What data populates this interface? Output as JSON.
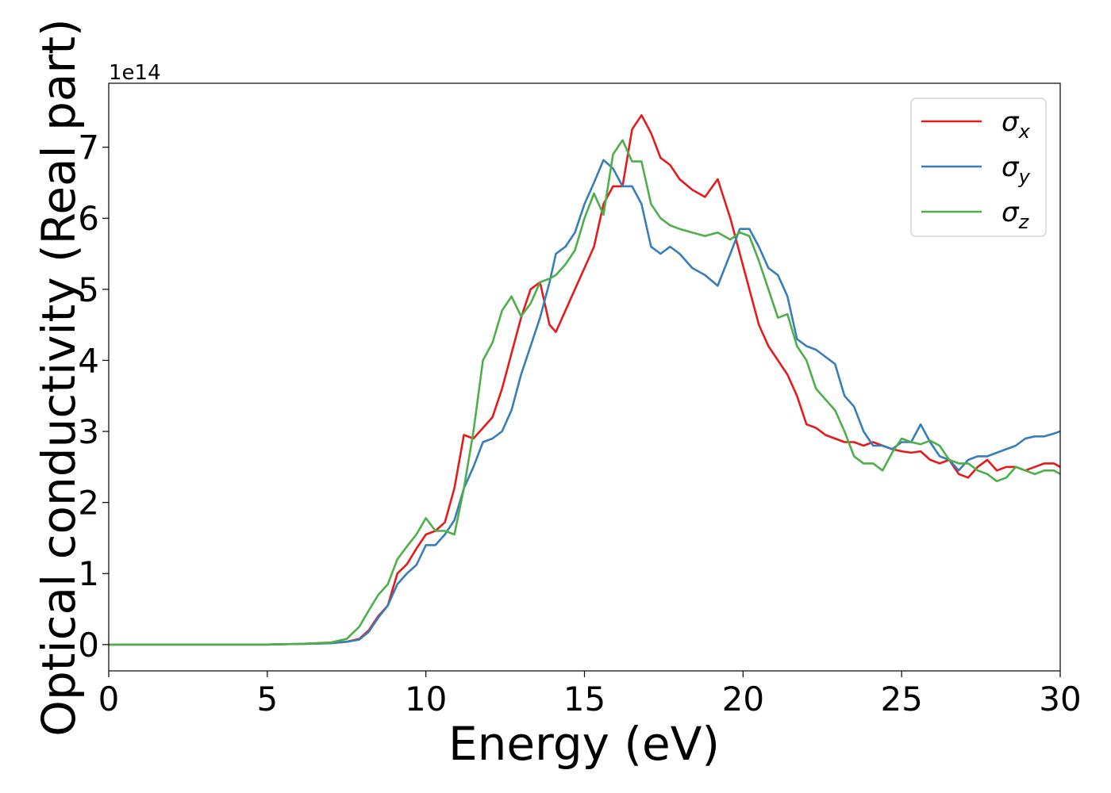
{
  "chart_data": {
    "type": "line",
    "title": "",
    "xlabel": "Energy (eV)",
    "ylabel": "Optical conductivity (Real part)",
    "y_multiplier_label": "1e14",
    "xlim": [
      0,
      30
    ],
    "ylim": [
      -0.37,
      7.9
    ],
    "xticks": [
      0,
      5,
      10,
      15,
      20,
      25,
      30
    ],
    "yticks": [
      0,
      1,
      2,
      3,
      4,
      5,
      6,
      7
    ],
    "grid": false,
    "legend_position": "top-right",
    "series": [
      {
        "name": "σ_x",
        "label_main": "σ",
        "label_sub": "x",
        "color": "#e41a1c",
        "x": [
          0,
          5,
          6,
          7,
          7.5,
          7.9,
          8.2,
          8.5,
          8.8,
          9.1,
          9.4,
          9.7,
          10.0,
          10.3,
          10.6,
          10.9,
          11.2,
          11.5,
          11.8,
          12.1,
          12.4,
          12.7,
          13.0,
          13.3,
          13.6,
          13.9,
          14.1,
          14.4,
          14.7,
          15.0,
          15.3,
          15.6,
          15.9,
          16.2,
          16.5,
          16.8,
          17.1,
          17.4,
          17.7,
          18.0,
          18.4,
          18.8,
          19.2,
          19.6,
          19.9,
          20.2,
          20.5,
          20.8,
          21.1,
          21.4,
          21.7,
          22.0,
          22.3,
          22.6,
          22.9,
          23.2,
          23.5,
          23.8,
          24.1,
          24.4,
          24.7,
          25.0,
          25.3,
          25.6,
          25.9,
          26.2,
          26.5,
          26.8,
          27.1,
          27.4,
          27.7,
          28.0,
          28.3,
          28.6,
          28.9,
          29.2,
          29.5,
          29.8,
          30.0
        ],
        "y": [
          0,
          0,
          0.01,
          0.02,
          0.04,
          0.08,
          0.2,
          0.4,
          0.55,
          1.0,
          1.13,
          1.35,
          1.55,
          1.6,
          1.72,
          2.2,
          2.95,
          2.9,
          3.05,
          3.2,
          3.6,
          4.1,
          4.6,
          5.0,
          5.1,
          4.5,
          4.4,
          4.7,
          5.0,
          5.3,
          5.6,
          6.2,
          6.45,
          6.45,
          7.25,
          7.45,
          7.2,
          6.85,
          6.75,
          6.55,
          6.4,
          6.3,
          6.55,
          6.0,
          5.5,
          5.0,
          4.5,
          4.2,
          4.0,
          3.8,
          3.5,
          3.1,
          3.05,
          2.95,
          2.9,
          2.85,
          2.85,
          2.8,
          2.85,
          2.8,
          2.75,
          2.72,
          2.7,
          2.72,
          2.6,
          2.55,
          2.6,
          2.4,
          2.35,
          2.5,
          2.6,
          2.45,
          2.5,
          2.5,
          2.45,
          2.5,
          2.55,
          2.55,
          2.5
        ]
      },
      {
        "name": "σ_y",
        "label_main": "σ",
        "label_sub": "y",
        "color": "#377eb8",
        "x": [
          0,
          5,
          6,
          7,
          7.5,
          7.9,
          8.2,
          8.5,
          8.8,
          9.1,
          9.4,
          9.7,
          10.0,
          10.3,
          10.6,
          10.9,
          11.2,
          11.5,
          11.8,
          12.1,
          12.4,
          12.7,
          13.0,
          13.3,
          13.6,
          13.9,
          14.1,
          14.4,
          14.7,
          15.0,
          15.3,
          15.6,
          15.9,
          16.2,
          16.5,
          16.8,
          17.1,
          17.4,
          17.7,
          18.0,
          18.4,
          18.8,
          19.2,
          19.6,
          19.9,
          20.2,
          20.5,
          20.8,
          21.1,
          21.4,
          21.7,
          22.0,
          22.3,
          22.6,
          22.9,
          23.2,
          23.5,
          23.8,
          24.1,
          24.4,
          24.7,
          25.0,
          25.3,
          25.6,
          25.9,
          26.2,
          26.5,
          26.8,
          27.1,
          27.4,
          27.7,
          28.0,
          28.3,
          28.6,
          28.9,
          29.2,
          29.5,
          29.8,
          30.0
        ],
        "y": [
          0,
          0,
          0.01,
          0.02,
          0.04,
          0.07,
          0.18,
          0.38,
          0.55,
          0.85,
          1.0,
          1.12,
          1.4,
          1.4,
          1.55,
          1.75,
          2.2,
          2.5,
          2.85,
          2.9,
          3.0,
          3.3,
          3.8,
          4.2,
          4.6,
          5.1,
          5.5,
          5.6,
          5.8,
          6.2,
          6.5,
          6.82,
          6.7,
          6.45,
          6.45,
          6.2,
          5.6,
          5.5,
          5.6,
          5.5,
          5.3,
          5.2,
          5.05,
          5.5,
          5.85,
          5.85,
          5.6,
          5.3,
          5.2,
          4.9,
          4.3,
          4.2,
          4.15,
          4.05,
          3.95,
          3.5,
          3.35,
          3.0,
          2.8,
          2.8,
          2.75,
          2.85,
          2.85,
          3.1,
          2.85,
          2.65,
          2.6,
          2.45,
          2.6,
          2.65,
          2.65,
          2.7,
          2.75,
          2.8,
          2.9,
          2.93,
          2.93,
          2.97,
          3.0
        ]
      },
      {
        "name": "σ_z",
        "label_main": "σ",
        "label_sub": "z",
        "color": "#4daf4a",
        "x": [
          0,
          5,
          6,
          7,
          7.5,
          7.9,
          8.2,
          8.5,
          8.8,
          9.1,
          9.4,
          9.7,
          10.0,
          10.3,
          10.6,
          10.9,
          11.2,
          11.5,
          11.8,
          12.1,
          12.4,
          12.7,
          13.0,
          13.3,
          13.6,
          13.9,
          14.1,
          14.4,
          14.7,
          15.0,
          15.3,
          15.6,
          15.9,
          16.2,
          16.5,
          16.8,
          17.1,
          17.4,
          17.7,
          18.0,
          18.4,
          18.8,
          19.2,
          19.6,
          19.9,
          20.2,
          20.5,
          20.8,
          21.1,
          21.4,
          21.7,
          22.0,
          22.3,
          22.6,
          22.9,
          23.2,
          23.5,
          23.8,
          24.1,
          24.4,
          24.7,
          25.0,
          25.3,
          25.6,
          25.9,
          26.2,
          26.5,
          26.8,
          27.1,
          27.4,
          27.7,
          28.0,
          28.3,
          28.6,
          28.9,
          29.2,
          29.5,
          29.8,
          30.0
        ],
        "y": [
          0,
          0,
          0.01,
          0.03,
          0.08,
          0.25,
          0.48,
          0.7,
          0.85,
          1.2,
          1.38,
          1.55,
          1.78,
          1.6,
          1.6,
          1.55,
          2.2,
          3.0,
          4.0,
          4.25,
          4.7,
          4.9,
          4.62,
          4.8,
          5.1,
          5.15,
          5.2,
          5.35,
          5.55,
          6.0,
          6.35,
          6.05,
          6.9,
          7.1,
          6.8,
          6.8,
          6.2,
          6.0,
          5.9,
          5.85,
          5.8,
          5.75,
          5.8,
          5.7,
          5.8,
          5.75,
          5.4,
          5.0,
          4.6,
          4.65,
          4.2,
          4.0,
          3.6,
          3.45,
          3.3,
          3.0,
          2.65,
          2.55,
          2.55,
          2.45,
          2.7,
          2.9,
          2.85,
          2.82,
          2.87,
          2.8,
          2.6,
          2.55,
          2.55,
          2.45,
          2.4,
          2.3,
          2.35,
          2.5,
          2.45,
          2.4,
          2.45,
          2.45,
          2.4
        ]
      }
    ]
  }
}
